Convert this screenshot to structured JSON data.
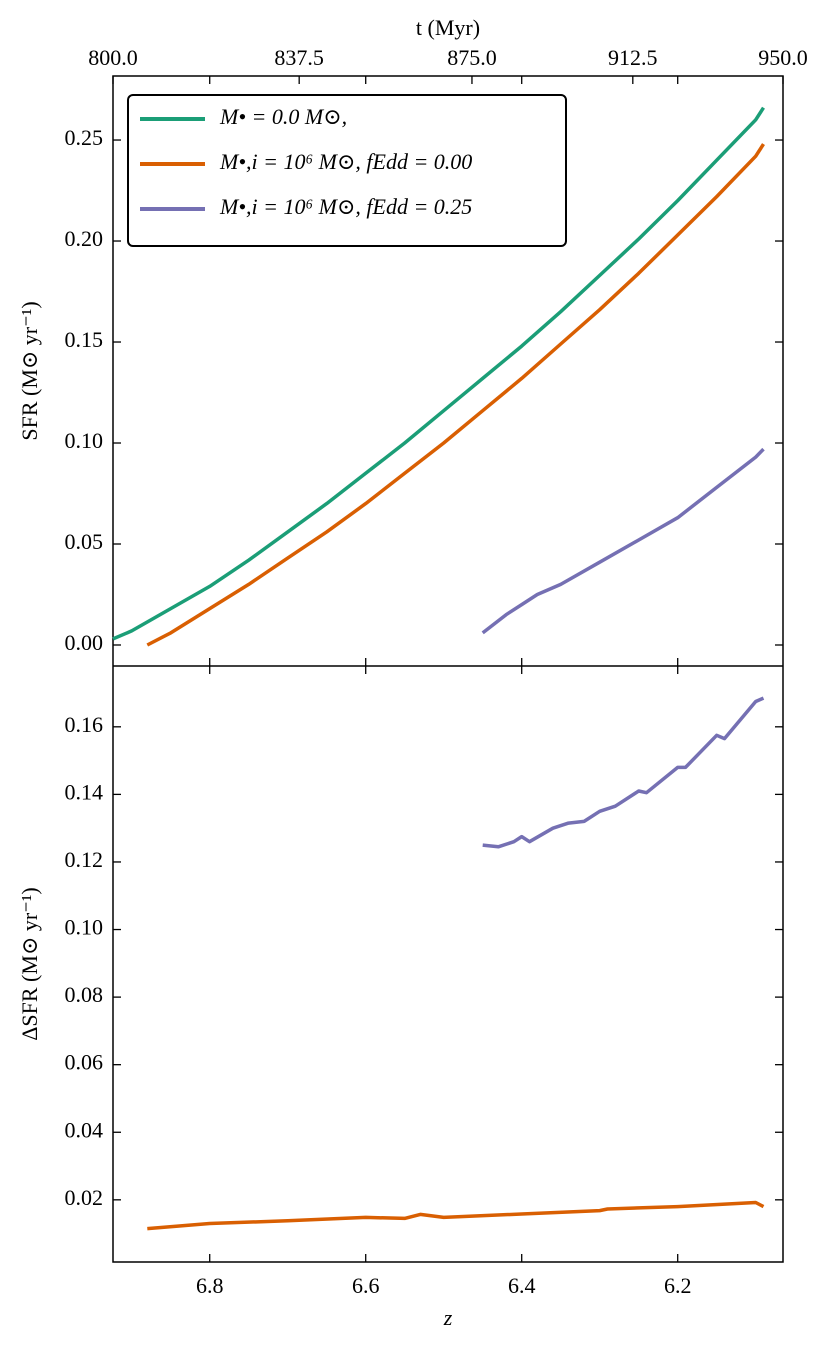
{
  "chart_data": [
    {
      "type": "line",
      "ylabel": "SFR (M⊙ yr⁻¹)",
      "x2label": "t (Myr)",
      "xlim": [
        6.924,
        6.065
      ],
      "xticks": [
        6.8,
        6.6,
        6.4,
        6.2
      ],
      "x2lim": [
        800,
        950
      ],
      "x2ticks": [
        {
          "value": 800,
          "label": "800.0"
        },
        {
          "value": 837.5,
          "label": "837.5"
        },
        {
          "value": 875,
          "label": "875.0"
        },
        {
          "value": 912.5,
          "label": "912.5"
        },
        {
          "value": 950,
          "label": "950.0"
        }
      ],
      "ylim": [
        -0.0104,
        0.2817
      ],
      "yticks": [
        {
          "value": 0,
          "label": "0.00"
        },
        0.05,
        {
          "value": 0.1,
          "label": "0.10"
        },
        0.15,
        {
          "value": 0.2,
          "label": "0.20"
        },
        0.25
      ],
      "legend": "upper left",
      "series": [
        {
          "name": "M• = 0.0 M⊙,",
          "color": "#1b9e77",
          "x": [
            6.924,
            6.9,
            6.85,
            6.8,
            6.75,
            6.7,
            6.65,
            6.6,
            6.55,
            6.5,
            6.45,
            6.4,
            6.35,
            6.3,
            6.25,
            6.2,
            6.15,
            6.1,
            6.09
          ],
          "values": [
            0.003,
            0.007,
            0.018,
            0.029,
            0.042,
            0.056,
            0.07,
            0.085,
            0.1,
            0.116,
            0.132,
            0.148,
            0.165,
            0.183,
            0.201,
            0.22,
            0.24,
            0.26,
            0.266
          ]
        },
        {
          "name": "M•,i = 10⁶ M⊙, fEdd = 0.00",
          "color": "#d95f02",
          "x": [
            6.88,
            6.85,
            6.8,
            6.75,
            6.7,
            6.65,
            6.6,
            6.55,
            6.5,
            6.45,
            6.4,
            6.35,
            6.3,
            6.25,
            6.2,
            6.15,
            6.1,
            6.09
          ],
          "values": [
            0.0,
            0.006,
            0.018,
            0.03,
            0.043,
            0.056,
            0.07,
            0.085,
            0.1,
            0.116,
            0.132,
            0.149,
            0.166,
            0.184,
            0.203,
            0.222,
            0.242,
            0.248
          ]
        },
        {
          "name": "M•,i = 10⁶ M⊙, fEdd = 0.25",
          "color": "#7570b3",
          "x": [
            6.45,
            6.42,
            6.4,
            6.38,
            6.35,
            6.3,
            6.25,
            6.2,
            6.15,
            6.1,
            6.09
          ],
          "values": [
            0.006,
            0.015,
            0.02,
            0.025,
            0.03,
            0.041,
            0.052,
            0.063,
            0.078,
            0.093,
            0.097
          ]
        }
      ]
    },
    {
      "type": "line",
      "xlabel": "z",
      "ylabel": "ΔSFR (M⊙ yr⁻¹)",
      "xlim": [
        6.924,
        6.065
      ],
      "xticks": [
        6.8,
        6.6,
        6.4,
        6.2
      ],
      "ylim": [
        0.0016,
        0.178
      ],
      "yticks": [
        0.02,
        0.04,
        0.06,
        0.08,
        {
          "value": 0.1,
          "label": "0.10"
        },
        0.12,
        0.14,
        0.16
      ],
      "series": [
        {
          "color": "#d95f02",
          "x": [
            6.88,
            6.8,
            6.7,
            6.6,
            6.55,
            6.53,
            6.5,
            6.4,
            6.3,
            6.29,
            6.2,
            6.1,
            6.09
          ],
          "values": [
            0.0115,
            0.013,
            0.0138,
            0.0148,
            0.0145,
            0.0157,
            0.0148,
            0.0158,
            0.0168,
            0.0173,
            0.018,
            0.0192,
            0.018
          ]
        },
        {
          "color": "#7570b3",
          "x": [
            6.45,
            6.43,
            6.41,
            6.4,
            6.39,
            6.36,
            6.34,
            6.32,
            6.3,
            6.28,
            6.25,
            6.24,
            6.2,
            6.19,
            6.15,
            6.14,
            6.1,
            6.09
          ],
          "values": [
            0.125,
            0.1245,
            0.126,
            0.1275,
            0.126,
            0.13,
            0.1315,
            0.132,
            0.135,
            0.1365,
            0.141,
            0.1405,
            0.148,
            0.148,
            0.1575,
            0.1565,
            0.1675,
            0.1685
          ]
        }
      ]
    }
  ]
}
